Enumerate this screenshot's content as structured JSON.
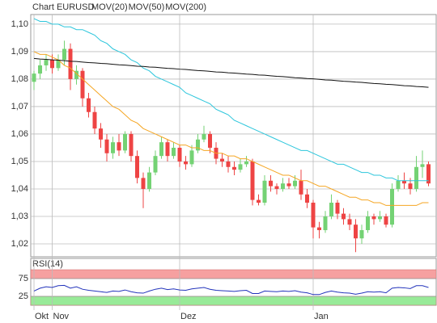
{
  "chart_data": [
    {
      "type": "candlestick",
      "title": "Chart EURUSD",
      "title_color": "#888888",
      "categories": [
        "Okt",
        null,
        null,
        "Nov",
        null,
        null,
        null,
        null,
        null,
        null,
        null,
        null,
        null,
        null,
        null,
        null,
        null,
        null,
        null,
        null,
        null,
        null,
        null,
        null,
        "Dez",
        null,
        null,
        null,
        null,
        null,
        null,
        null,
        null,
        null,
        null,
        null,
        null,
        null,
        null,
        null,
        null,
        null,
        null,
        null,
        null,
        null,
        "Jan",
        null,
        null,
        null,
        null,
        null,
        null,
        null,
        null,
        null,
        null,
        null,
        null,
        null,
        null,
        null,
        null,
        null,
        null,
        null
      ],
      "open": [
        1.079,
        1.082,
        1.085,
        1.087,
        1.084,
        1.087,
        1.091,
        1.08,
        1.083,
        1.073,
        1.068,
        1.062,
        1.058,
        1.053,
        1.057,
        1.054,
        1.06,
        1.052,
        1.044,
        1.04,
        1.046,
        1.052,
        1.057,
        1.052,
        1.055,
        1.05,
        1.049,
        1.054,
        1.058,
        1.06,
        1.055,
        1.051,
        1.05,
        1.048,
        1.047,
        1.049,
        1.05,
        1.036,
        1.035,
        1.043,
        1.041,
        1.04,
        1.042,
        1.041,
        1.043,
        1.038,
        1.035,
        1.026,
        1.025,
        1.03,
        1.035,
        1.031,
        1.029,
        1.027,
        1.022,
        1.025,
        1.03,
        1.029,
        1.03,
        1.027,
        1.04,
        1.043,
        1.042,
        1.04,
        1.048,
        1.049
      ],
      "high": [
        1.083,
        1.087,
        1.089,
        1.089,
        1.089,
        1.094,
        1.093,
        1.085,
        1.084,
        1.075,
        1.07,
        1.064,
        1.06,
        1.059,
        1.06,
        1.061,
        1.061,
        1.054,
        1.046,
        1.048,
        1.054,
        1.059,
        1.058,
        1.057,
        1.056,
        1.052,
        1.056,
        1.06,
        1.063,
        1.061,
        1.057,
        1.053,
        1.052,
        1.05,
        1.051,
        1.052,
        1.051,
        1.038,
        1.045,
        1.045,
        1.042,
        1.044,
        1.044,
        1.045,
        1.047,
        1.04,
        1.036,
        1.028,
        1.032,
        1.038,
        1.036,
        1.033,
        1.031,
        1.029,
        1.027,
        1.032,
        1.031,
        1.032,
        1.031,
        1.042,
        1.045,
        1.046,
        1.044,
        1.052,
        1.054,
        1.05
      ],
      "low": [
        1.076,
        1.08,
        1.083,
        1.082,
        1.083,
        1.085,
        1.076,
        1.078,
        1.07,
        1.066,
        1.06,
        1.055,
        1.05,
        1.051,
        1.052,
        1.053,
        1.05,
        1.042,
        1.033,
        1.039,
        1.045,
        1.051,
        1.05,
        1.051,
        1.048,
        1.047,
        1.048,
        1.053,
        1.057,
        1.053,
        1.049,
        1.048,
        1.046,
        1.045,
        1.046,
        1.048,
        1.034,
        1.034,
        1.034,
        1.039,
        1.038,
        1.039,
        1.04,
        1.04,
        1.036,
        1.033,
        1.022,
        1.022,
        1.024,
        1.029,
        1.029,
        1.027,
        1.025,
        1.017,
        1.02,
        1.024,
        1.027,
        1.028,
        1.026,
        1.026,
        1.039,
        1.04,
        1.038,
        1.039,
        1.044,
        1.041
      ],
      "close": [
        1.082,
        1.085,
        1.087,
        1.084,
        1.087,
        1.091,
        1.08,
        1.083,
        1.073,
        1.068,
        1.062,
        1.058,
        1.053,
        1.057,
        1.054,
        1.06,
        1.052,
        1.044,
        1.04,
        1.046,
        1.052,
        1.057,
        1.052,
        1.055,
        1.05,
        1.049,
        1.054,
        1.058,
        1.06,
        1.055,
        1.051,
        1.05,
        1.048,
        1.047,
        1.049,
        1.05,
        1.036,
        1.035,
        1.043,
        1.041,
        1.04,
        1.042,
        1.041,
        1.043,
        1.038,
        1.035,
        1.026,
        1.025,
        1.03,
        1.035,
        1.031,
        1.029,
        1.027,
        1.022,
        1.025,
        1.03,
        1.029,
        1.03,
        1.027,
        1.04,
        1.043,
        1.042,
        1.04,
        1.048,
        1.049,
        1.042
      ],
      "up_color": "#74d274",
      "down_color": "#ee4444",
      "series": [
        {
          "name": "MOV(20)",
          "color": "#f5a623",
          "values": [
            1.09,
            1.089,
            1.089,
            1.088,
            1.087,
            1.085,
            1.084,
            1.082,
            1.08,
            1.078,
            1.076,
            1.074,
            1.072,
            1.07,
            1.069,
            1.067,
            1.065,
            1.064,
            1.062,
            1.061,
            1.06,
            1.059,
            1.058,
            1.057,
            1.056,
            1.056,
            1.055,
            1.055,
            1.054,
            1.054,
            1.053,
            1.053,
            1.052,
            1.052,
            1.051,
            1.051,
            1.05,
            1.049,
            1.048,
            1.047,
            1.046,
            1.045,
            1.045,
            1.044,
            1.043,
            1.043,
            1.042,
            1.041,
            1.041,
            1.04,
            1.039,
            1.038,
            1.037,
            1.037,
            1.036,
            1.036,
            1.035,
            1.035,
            1.034,
            1.034,
            1.034,
            1.034,
            1.034,
            1.034,
            1.035,
            1.035
          ]
        },
        {
          "name": "MOV(50)",
          "color": "#2cc6dc",
          "values": [
            1.102,
            1.101,
            1.101,
            1.1,
            1.1,
            1.099,
            1.099,
            1.098,
            1.098,
            1.097,
            1.096,
            1.094,
            1.093,
            1.091,
            1.09,
            1.089,
            1.087,
            1.086,
            1.084,
            1.083,
            1.081,
            1.08,
            1.079,
            1.078,
            1.077,
            1.075,
            1.074,
            1.073,
            1.072,
            1.071,
            1.069,
            1.068,
            1.067,
            1.065,
            1.064,
            1.063,
            1.062,
            1.061,
            1.06,
            1.059,
            1.058,
            1.057,
            1.056,
            1.055,
            1.054,
            1.054,
            1.053,
            1.052,
            1.051,
            1.05,
            1.049,
            1.049,
            1.048,
            1.047,
            1.046,
            1.046,
            1.045,
            1.045,
            1.044,
            1.044,
            1.043,
            1.043,
            1.043,
            1.043,
            1.043,
            1.043
          ]
        },
        {
          "name": "MOV(200)",
          "color": "#111111",
          "values": [
            1.0875,
            1.0873,
            1.0872,
            1.087,
            1.0869,
            1.0867,
            1.0865,
            1.0864,
            1.0862,
            1.086,
            1.0859,
            1.0857,
            1.0856,
            1.0854,
            1.0852,
            1.0851,
            1.0849,
            1.0847,
            1.0846,
            1.0844,
            1.0843,
            1.0841,
            1.0839,
            1.0838,
            1.0836,
            1.0835,
            1.0833,
            1.0831,
            1.083,
            1.0828,
            1.0826,
            1.0825,
            1.0823,
            1.0822,
            1.082,
            1.0818,
            1.0817,
            1.0815,
            1.0814,
            1.0812,
            1.081,
            1.0809,
            1.0807,
            1.0805,
            1.0804,
            1.0802,
            1.0801,
            1.0799,
            1.0797,
            1.0796,
            1.0794,
            1.0792,
            1.0791,
            1.0789,
            1.0788,
            1.0786,
            1.0784,
            1.0783,
            1.0781,
            1.078,
            1.0778,
            1.0776,
            1.0775,
            1.0773,
            1.0772,
            1.077
          ]
        }
      ],
      "ylim": [
        1.0153,
        1.1035
      ],
      "yticks": [
        {
          "value": 1.02,
          "label": "1,02"
        },
        {
          "value": 1.03,
          "label": "1,03"
        },
        {
          "value": 1.04,
          "label": "1,04"
        },
        {
          "value": 1.05,
          "label": "1,05"
        },
        {
          "value": 1.06,
          "label": "1,06"
        },
        {
          "value": 1.07,
          "label": "1,07"
        },
        {
          "value": 1.08,
          "label": "1,08"
        },
        {
          "value": 1.09,
          "label": "1,09"
        },
        {
          "value": 1.1,
          "label": "1,10"
        }
      ],
      "grid": true
    },
    {
      "type": "line",
      "title": "RSI(14)",
      "series": [
        {
          "color": "#2233bb",
          "values": [
            40,
            48,
            52,
            50,
            55,
            56,
            48,
            52,
            45,
            42,
            40,
            38,
            36,
            40,
            39,
            43,
            38,
            35,
            34,
            40,
            45,
            48,
            44,
            46,
            43,
            42,
            46,
            48,
            50,
            45,
            42,
            41,
            40,
            39,
            41,
            42,
            33,
            33,
            40,
            39,
            38,
            40,
            39,
            41,
            37,
            35,
            30,
            30,
            36,
            40,
            37,
            35,
            34,
            31,
            34,
            38,
            37,
            38,
            35,
            48,
            50,
            49,
            47,
            55,
            55,
            50
          ]
        }
      ],
      "bands": [
        {
          "from": 75,
          "to": 100,
          "color": "#f6a0a0"
        },
        {
          "from": 0,
          "to": 25,
          "color": "#98ea98"
        }
      ],
      "ylim": [
        0,
        100
      ],
      "yticks": [
        25,
        75
      ]
    }
  ]
}
